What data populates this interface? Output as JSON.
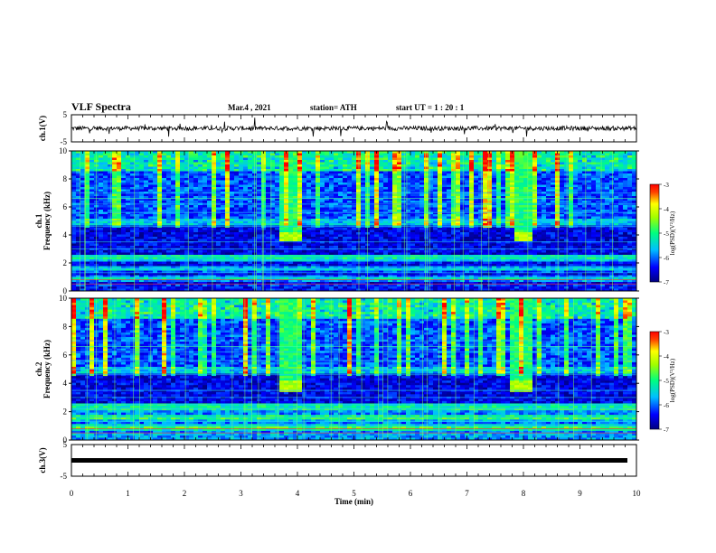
{
  "header": {
    "title": "VLF  Spectra",
    "date": "Mar.4  , 2021",
    "station": "station= ATH",
    "start": "start  UT =   1 : 20 : 1"
  },
  "chart_data": [
    {
      "type": "line",
      "panel": "ch1-waveform",
      "ylabel": "ch.1(V)",
      "ylim": [
        -5,
        5
      ],
      "yticks": [
        "5",
        "-5"
      ],
      "series_color": "#000000",
      "description": "noisy waveform near 0 V"
    },
    {
      "type": "heatmap",
      "panel": "ch1-spectrogram",
      "ylabel": "ch.1\nFrequency  (kHz)",
      "ylim": [
        0,
        10
      ],
      "yticks": [
        "0",
        "2",
        "4",
        "6",
        "8",
        "10"
      ],
      "colorbar": {
        "label": "log(PSD)(V²/Hz)",
        "range": [
          -7,
          -3
        ],
        "ticks": [
          "-3",
          "-4",
          "-5",
          "-6",
          "-7"
        ]
      },
      "bursts": [
        {
          "t_start": 3.7,
          "t_end": 4.0,
          "f_center": 3.9
        },
        {
          "t_start": 7.9,
          "t_end": 8.1,
          "f_center": 3.9
        }
      ]
    },
    {
      "type": "heatmap",
      "panel": "ch2-spectrogram",
      "ylabel": "ch.2\nFrequency  (kHz)",
      "ylim": [
        0,
        10
      ],
      "yticks": [
        "0",
        "2",
        "4",
        "6",
        "8",
        "10"
      ],
      "colorbar": {
        "label": "log(PSD)(V²/Hz)",
        "range": [
          -7,
          -3
        ],
        "ticks": [
          "-3",
          "-4",
          "-5",
          "-6",
          "-7"
        ]
      },
      "bursts": [
        {
          "t_start": 3.7,
          "t_end": 4.0,
          "f_center": 3.8
        },
        {
          "t_start": 7.8,
          "t_end": 8.1,
          "f_center": 3.8
        }
      ]
    },
    {
      "type": "line",
      "panel": "ch3-waveform",
      "ylabel": "ch.3(V)",
      "ylim": [
        -5,
        5
      ],
      "yticks": [
        "5",
        "-5"
      ],
      "constant_value": 0,
      "series_color": "#000000"
    }
  ],
  "xaxis": {
    "label": "Time  (min)",
    "xlim": [
      0,
      10
    ],
    "ticks": [
      "0",
      "1",
      "2",
      "3",
      "4",
      "5",
      "6",
      "7",
      "8",
      "9",
      "10"
    ]
  }
}
